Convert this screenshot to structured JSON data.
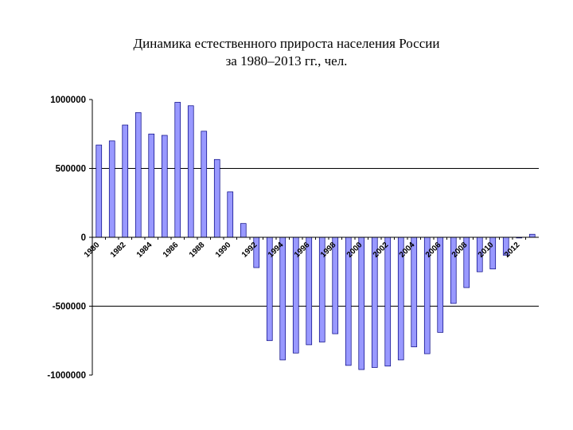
{
  "chart_data": {
    "type": "bar",
    "title_line1": "Динамика естественного прироста населения России",
    "title_line2": "за 1980–2013 гг., чел.",
    "xlabel": "",
    "ylabel": "",
    "ylim": [
      -1000000,
      1000000
    ],
    "yticks": [
      1000000,
      500000,
      0,
      -500000,
      -1000000
    ],
    "ytick_labels": [
      "1000000",
      "500000",
      "0",
      "-500000",
      "-1000000"
    ],
    "grid": "horizontal at 500000 and -500000",
    "legend": "none",
    "bar_color": "#9999ff",
    "bar_edge_color": "#000080",
    "categories": [
      "1980",
      "1981",
      "1982",
      "1983",
      "1984",
      "1985",
      "1986",
      "1987",
      "1988",
      "1989",
      "1990",
      "1991",
      "1992",
      "1993",
      "1994",
      "1995",
      "1996",
      "1997",
      "1998",
      "1999",
      "2000",
      "2001",
      "2002",
      "2003",
      "2004",
      "2005",
      "2006",
      "2007",
      "2008",
      "2009",
      "2010",
      "2011",
      "2012",
      "2013"
    ],
    "xtick_labels": [
      "1980",
      "1982",
      "1984",
      "1986",
      "1988",
      "1990",
      "1992",
      "1994",
      "1996",
      "1998",
      "2000",
      "2002",
      "2004",
      "2006",
      "2008",
      "2010",
      "2012"
    ],
    "values": [
      670000,
      700000,
      815000,
      905000,
      750000,
      740000,
      980000,
      955000,
      770000,
      565000,
      330000,
      100000,
      -220000,
      -750000,
      -890000,
      -840000,
      -780000,
      -760000,
      -700000,
      -930000,
      -960000,
      -945000,
      -935000,
      -890000,
      -795000,
      -845000,
      -690000,
      -480000,
      -365000,
      -250000,
      -230000,
      -130000,
      -5000,
      22000
    ]
  }
}
